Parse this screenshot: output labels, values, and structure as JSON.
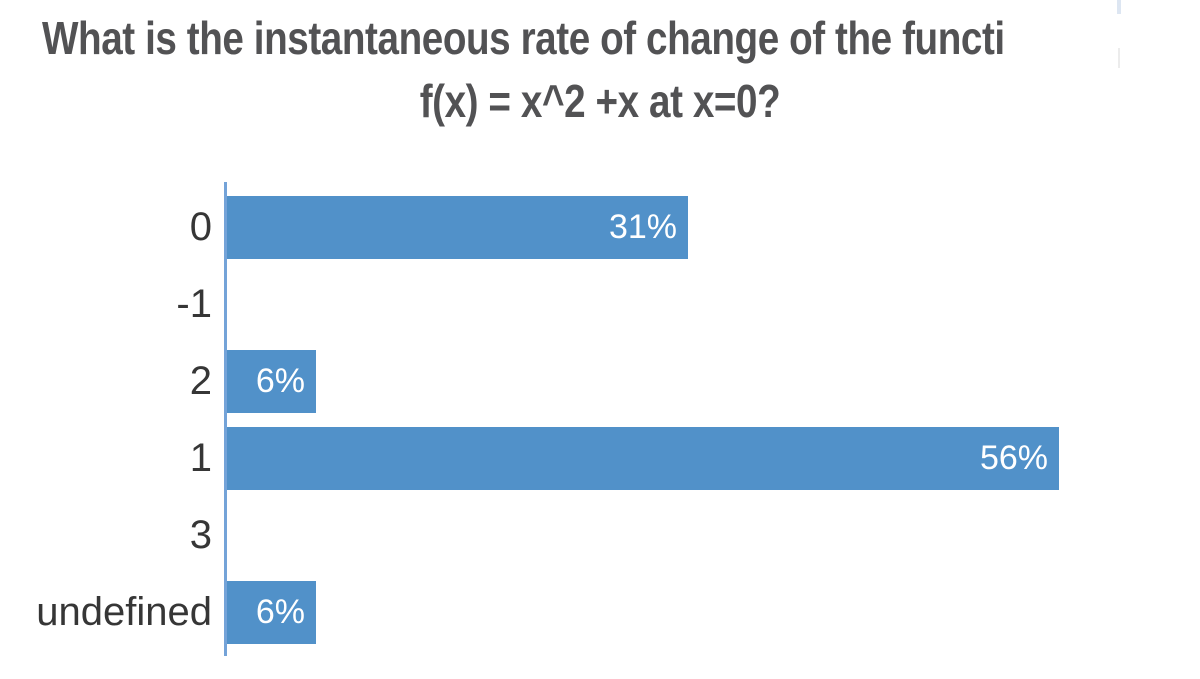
{
  "title": {
    "line1": "What is the instantaneous rate of change of the functi",
    "line2": "f(x) = x^2 +x at x=0?"
  },
  "chart_data": {
    "type": "bar",
    "orientation": "horizontal",
    "title": "What is the instantaneous rate of change of the functi",
    "subtitle": "f(x) = x^2 +x at x=0?",
    "categories": [
      "0",
      "-1",
      "2",
      "1",
      "3",
      "undefined"
    ],
    "values": [
      31,
      0,
      6,
      56,
      0,
      6
    ],
    "value_labels": [
      "31%",
      "",
      "6%",
      "56%",
      "",
      "6%"
    ],
    "unit": "percent",
    "max_value_for_scale": 56,
    "value_label_position": "inside-right",
    "legend": false,
    "grid": false,
    "axis_line": "left-vertical"
  },
  "colors": {
    "bar": "#5191c9",
    "axis": "#74a3d8",
    "title-text": "#525254",
    "category-text": "#363636",
    "value-text": "#ffffff",
    "background": "#ffffff"
  }
}
